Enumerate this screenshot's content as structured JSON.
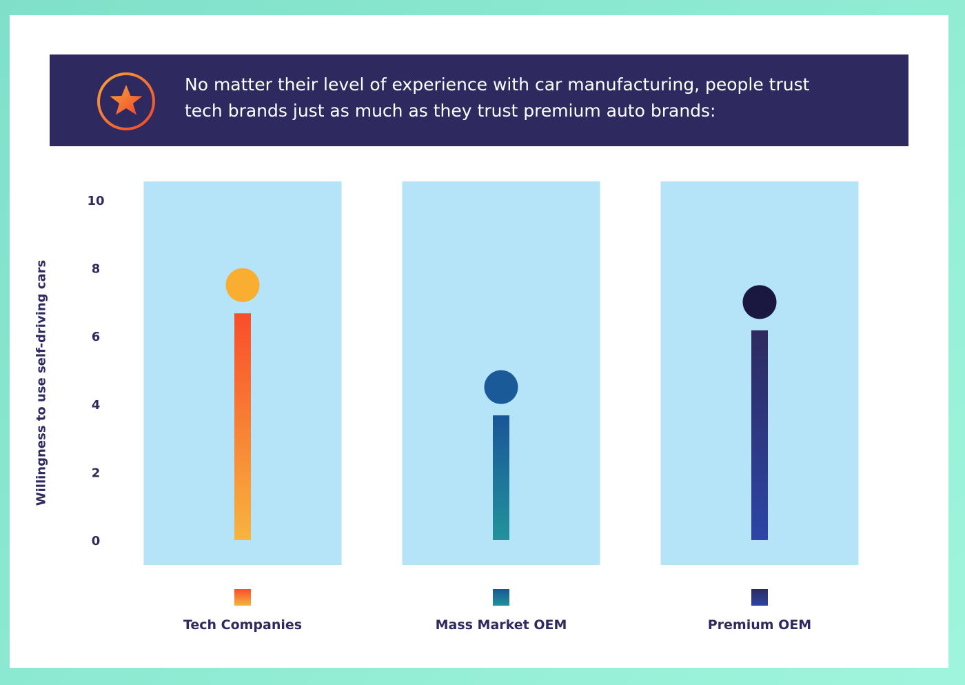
{
  "banner": {
    "icon": "star-icon",
    "line1": "No matter their level of experience with car manufacturing, people trust",
    "line2": "tech brands just as much as they trust premium auto brands:"
  },
  "colors": {
    "background": "#9ff5dc",
    "banner": "#2e2a5f",
    "panel": "#b5e3f7",
    "axis_text": "#2e2a5f"
  },
  "chart_data": {
    "type": "lollipop",
    "title": "",
    "xlabel": "",
    "ylabel": "Willingness to use self-driving cars",
    "ylim": [
      0,
      10
    ],
    "yticks": [
      0,
      2,
      4,
      6,
      8,
      10
    ],
    "grid": false,
    "categories": [
      "Tech Companies",
      "Mass Market OEM",
      "Premium OEM"
    ],
    "values": [
      7.5,
      4.5,
      7.0
    ],
    "series_colors": [
      {
        "top": "#f94d2a",
        "bottom": "#f7b43f",
        "dot": "#f9ae32"
      },
      {
        "top": "#1a5597",
        "bottom": "#22939b",
        "dot": "#1b5a99"
      },
      {
        "top": "#2e2a5f",
        "bottom": "#2d45a6",
        "dot": "#1a1840"
      }
    ]
  }
}
